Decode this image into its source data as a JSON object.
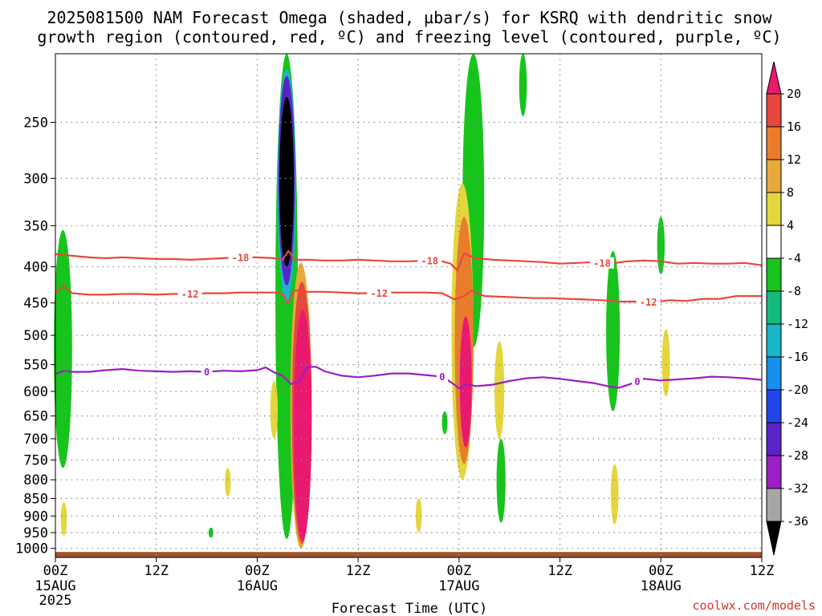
{
  "title_lines": [
    "2025081500 NAM Forecast Omega (shaded, µbar/s) for KSRQ with dendritic snow",
    "growth region (contoured, red, ºC) and freezing level (contoured, purple, ºC)"
  ],
  "credit": "coolwx.com/models",
  "colors": {
    "isotherm": "#e8473c",
    "freezing": "#9b1fc2",
    "ground": "#a0522d",
    "grid": "#888888"
  },
  "chart_data": {
    "type": "heatmap",
    "title": "2025081500 NAM Forecast Omega (shaded, µbar/s) for KSRQ with dendritic snow growth region (contoured, red, ºC) and freezing level (contoured, purple, ºC)",
    "xlabel": "Forecast Time (UTC)",
    "ylabel": "",
    "x_range_hours": [
      0,
      84
    ],
    "x_ticks": [
      {
        "hour": 0,
        "label": "00Z",
        "sub": "15AUG",
        "sub2": "2025"
      },
      {
        "hour": 12,
        "label": "12Z",
        "sub": "",
        "sub2": ""
      },
      {
        "hour": 24,
        "label": "00Z",
        "sub": "16AUG",
        "sub2": ""
      },
      {
        "hour": 36,
        "label": "12Z",
        "sub": "",
        "sub2": ""
      },
      {
        "hour": 48,
        "label": "00Z",
        "sub": "17AUG",
        "sub2": ""
      },
      {
        "hour": 60,
        "label": "12Z",
        "sub": "",
        "sub2": ""
      },
      {
        "hour": 72,
        "label": "00Z",
        "sub": "18AUG",
        "sub2": ""
      },
      {
        "hour": 84,
        "label": "12Z",
        "sub": "",
        "sub2": ""
      }
    ],
    "y_axis": "pressure (mb), log scale",
    "y_range": [
      1030,
      200
    ],
    "y_ticks": [
      250,
      300,
      350,
      400,
      450,
      500,
      550,
      600,
      650,
      700,
      750,
      800,
      850,
      900,
      950,
      1000
    ],
    "colorbar": {
      "labels": [
        "20",
        "16",
        "12",
        "8",
        "4",
        "-4",
        "-8",
        "-12",
        "-16",
        "-20",
        "-24",
        "-28",
        "-32",
        "-36"
      ],
      "colors": [
        "#e8196e",
        "#e8473c",
        "#ea7d2c",
        "#e9a83a",
        "#e4d63c",
        "#ffffff",
        "#17c41b",
        "#14bb7e",
        "#19b5c9",
        "#188ef0",
        "#1f46e8",
        "#5a22c9",
        "#9b1fc2",
        "#a6a6a6",
        "#000000"
      ]
    },
    "omega_features": [
      {
        "hour": 0.9,
        "p_top": 355,
        "p_bot": 770,
        "value": -8
      },
      {
        "hour": 1.0,
        "p_top": 860,
        "p_bot": 960,
        "value": 4
      },
      {
        "hour": 20.5,
        "p_top": 770,
        "p_bot": 845,
        "value": 4
      },
      {
        "hour": 18.5,
        "p_top": 935,
        "p_bot": 965,
        "value": -8
      },
      {
        "hour": 27.5,
        "p_top": 200,
        "p_bot": 970,
        "value": -8
      },
      {
        "hour": 27.5,
        "p_top": 210,
        "p_bot": 450,
        "value": -16
      },
      {
        "hour": 27.5,
        "p_top": 215,
        "p_bot": 425,
        "value": -28
      },
      {
        "hour": 27.5,
        "p_top": 230,
        "p_bot": 400,
        "value": -36
      },
      {
        "hour": 29.2,
        "p_top": 395,
        "p_bot": 1000,
        "value": 8
      },
      {
        "hour": 29.3,
        "p_top": 420,
        "p_bot": 985,
        "value": 16
      },
      {
        "hour": 29.4,
        "p_top": 460,
        "p_bot": 975,
        "value": 20
      },
      {
        "hour": 26.0,
        "p_top": 580,
        "p_bot": 700,
        "value": 4
      },
      {
        "hour": 43.2,
        "p_top": 850,
        "p_bot": 950,
        "value": 4
      },
      {
        "hour": 46.3,
        "p_top": 640,
        "p_bot": 690,
        "value": -8
      },
      {
        "hour": 49.7,
        "p_top": 200,
        "p_bot": 520,
        "value": -8
      },
      {
        "hour": 48.4,
        "p_top": 305,
        "p_bot": 800,
        "value": 4
      },
      {
        "hour": 48.6,
        "p_top": 340,
        "p_bot": 760,
        "value": 12
      },
      {
        "hour": 48.8,
        "p_top": 470,
        "p_bot": 720,
        "value": 20
      },
      {
        "hour": 52.8,
        "p_top": 510,
        "p_bot": 700,
        "value": 4
      },
      {
        "hour": 53.0,
        "p_top": 700,
        "p_bot": 920,
        "value": -8
      },
      {
        "hour": 55.6,
        "p_top": 200,
        "p_bot": 245,
        "value": -8
      },
      {
        "hour": 66.3,
        "p_top": 380,
        "p_bot": 640,
        "value": -8
      },
      {
        "hour": 66.5,
        "p_top": 760,
        "p_bot": 925,
        "value": 4
      },
      {
        "hour": 72.0,
        "p_top": 340,
        "p_bot": 410,
        "value": -8
      },
      {
        "hour": 72.6,
        "p_top": 490,
        "p_bot": 610,
        "value": 4
      }
    ],
    "isotherms": [
      {
        "temp": -18,
        "label": "-18",
        "label_hours": [
          22.0,
          44.5,
          65.0
        ],
        "x": [
          0,
          2,
          4,
          6,
          8,
          10,
          12,
          14,
          16,
          18,
          20,
          22,
          24,
          26,
          27,
          27.7,
          28.5,
          30,
          32,
          34,
          36,
          38,
          40,
          42,
          44,
          46,
          47,
          47.8,
          48.6,
          50,
          52,
          54,
          56,
          58,
          60,
          62,
          64,
          66,
          68,
          70,
          72,
          74,
          76,
          78,
          80,
          82,
          84
        ],
        "y": [
          384,
          386,
          388,
          389,
          388,
          389,
          390,
          390,
          391,
          390,
          389,
          388,
          388,
          389,
          391,
          380,
          391,
          391,
          392,
          392,
          391,
          392,
          393,
          393,
          392,
          393,
          396,
          405,
          383,
          389,
          391,
          392,
          393,
          394,
          396,
          395,
          394,
          396,
          393,
          392,
          393,
          396,
          395,
          396,
          396,
          395,
          398
        ]
      },
      {
        "temp": -12,
        "label": "-12",
        "label_hours": [
          16.0,
          38.5,
          70.5
        ],
        "x": [
          0,
          1,
          2,
          4,
          6,
          8,
          10,
          12,
          14,
          16,
          18,
          20,
          22,
          24,
          26,
          27,
          27.6,
          28.4,
          30,
          32,
          34,
          36,
          38,
          40,
          42,
          44,
          46,
          47.5,
          48.6,
          49.5,
          51,
          53,
          55,
          57,
          59,
          61,
          63,
          65,
          67,
          69,
          71,
          73,
          75,
          77,
          79,
          81,
          84
        ],
        "y": [
          435,
          426,
          436,
          438,
          438,
          437,
          437,
          438,
          437,
          437,
          436,
          436,
          435,
          435,
          435,
          437,
          450,
          432,
          434,
          434,
          435,
          436,
          436,
          435,
          435,
          435,
          436,
          445,
          440,
          432,
          440,
          441,
          442,
          443,
          443,
          444,
          445,
          446,
          448,
          448,
          449,
          446,
          447,
          444,
          444,
          440,
          440
        ]
      },
      {
        "temp": 0,
        "label": "0",
        "label_hours": [
          18.0,
          46.0,
          69.2
        ],
        "x": [
          0,
          1,
          2,
          4,
          6,
          8,
          10,
          12,
          14,
          16,
          18,
          20,
          22,
          24,
          25,
          26,
          27,
          28,
          29,
          30,
          31,
          32,
          34,
          36,
          38,
          40,
          42,
          44,
          46,
          47,
          48,
          49,
          50,
          52,
          54,
          56,
          58,
          60,
          62,
          64,
          66,
          67,
          68,
          70,
          72,
          74,
          76,
          78,
          80,
          82,
          84
        ],
        "y": [
          567,
          561,
          563,
          563,
          560,
          558,
          561,
          562,
          563,
          562,
          563,
          561,
          562,
          560,
          555,
          564,
          570,
          586,
          580,
          554,
          554,
          562,
          570,
          573,
          570,
          566,
          566,
          569,
          572,
          582,
          594,
          586,
          590,
          587,
          580,
          575,
          573,
          576,
          580,
          584,
          591,
          593,
          588,
          576,
          579,
          577,
          575,
          572,
          573,
          575,
          578
        ]
      }
    ],
    "ground": {
      "p_top": 1012,
      "p_bottom": 1030
    }
  }
}
